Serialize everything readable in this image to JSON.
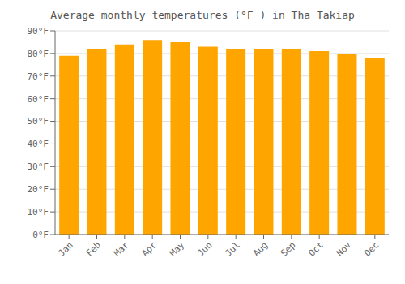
{
  "chart_data": {
    "type": "bar",
    "title": "Average monthly temperatures (°F ) in Tha Takiap",
    "categories": [
      "Jan",
      "Feb",
      "Mar",
      "Apr",
      "May",
      "Jun",
      "Jul",
      "Aug",
      "Sep",
      "Oct",
      "Nov",
      "Dec"
    ],
    "values": [
      79,
      82,
      84,
      86,
      85,
      83,
      82,
      82,
      82,
      81,
      80,
      78
    ],
    "color": "#FFA500",
    "ylim": [
      0,
      90
    ],
    "yticks": [
      {
        "value": 0,
        "label": "0°F"
      },
      {
        "value": 10,
        "label": "10°F"
      },
      {
        "value": 20,
        "label": "20°F"
      },
      {
        "value": 30,
        "label": "30°F"
      },
      {
        "value": 40,
        "label": "40°F"
      },
      {
        "value": 50,
        "label": "50°F"
      },
      {
        "value": 60,
        "label": "60°F"
      },
      {
        "value": 70,
        "label": "70°F"
      },
      {
        "value": 80,
        "label": "80°F"
      },
      {
        "value": 90,
        "label": "90°F"
      }
    ],
    "grid": true
  }
}
